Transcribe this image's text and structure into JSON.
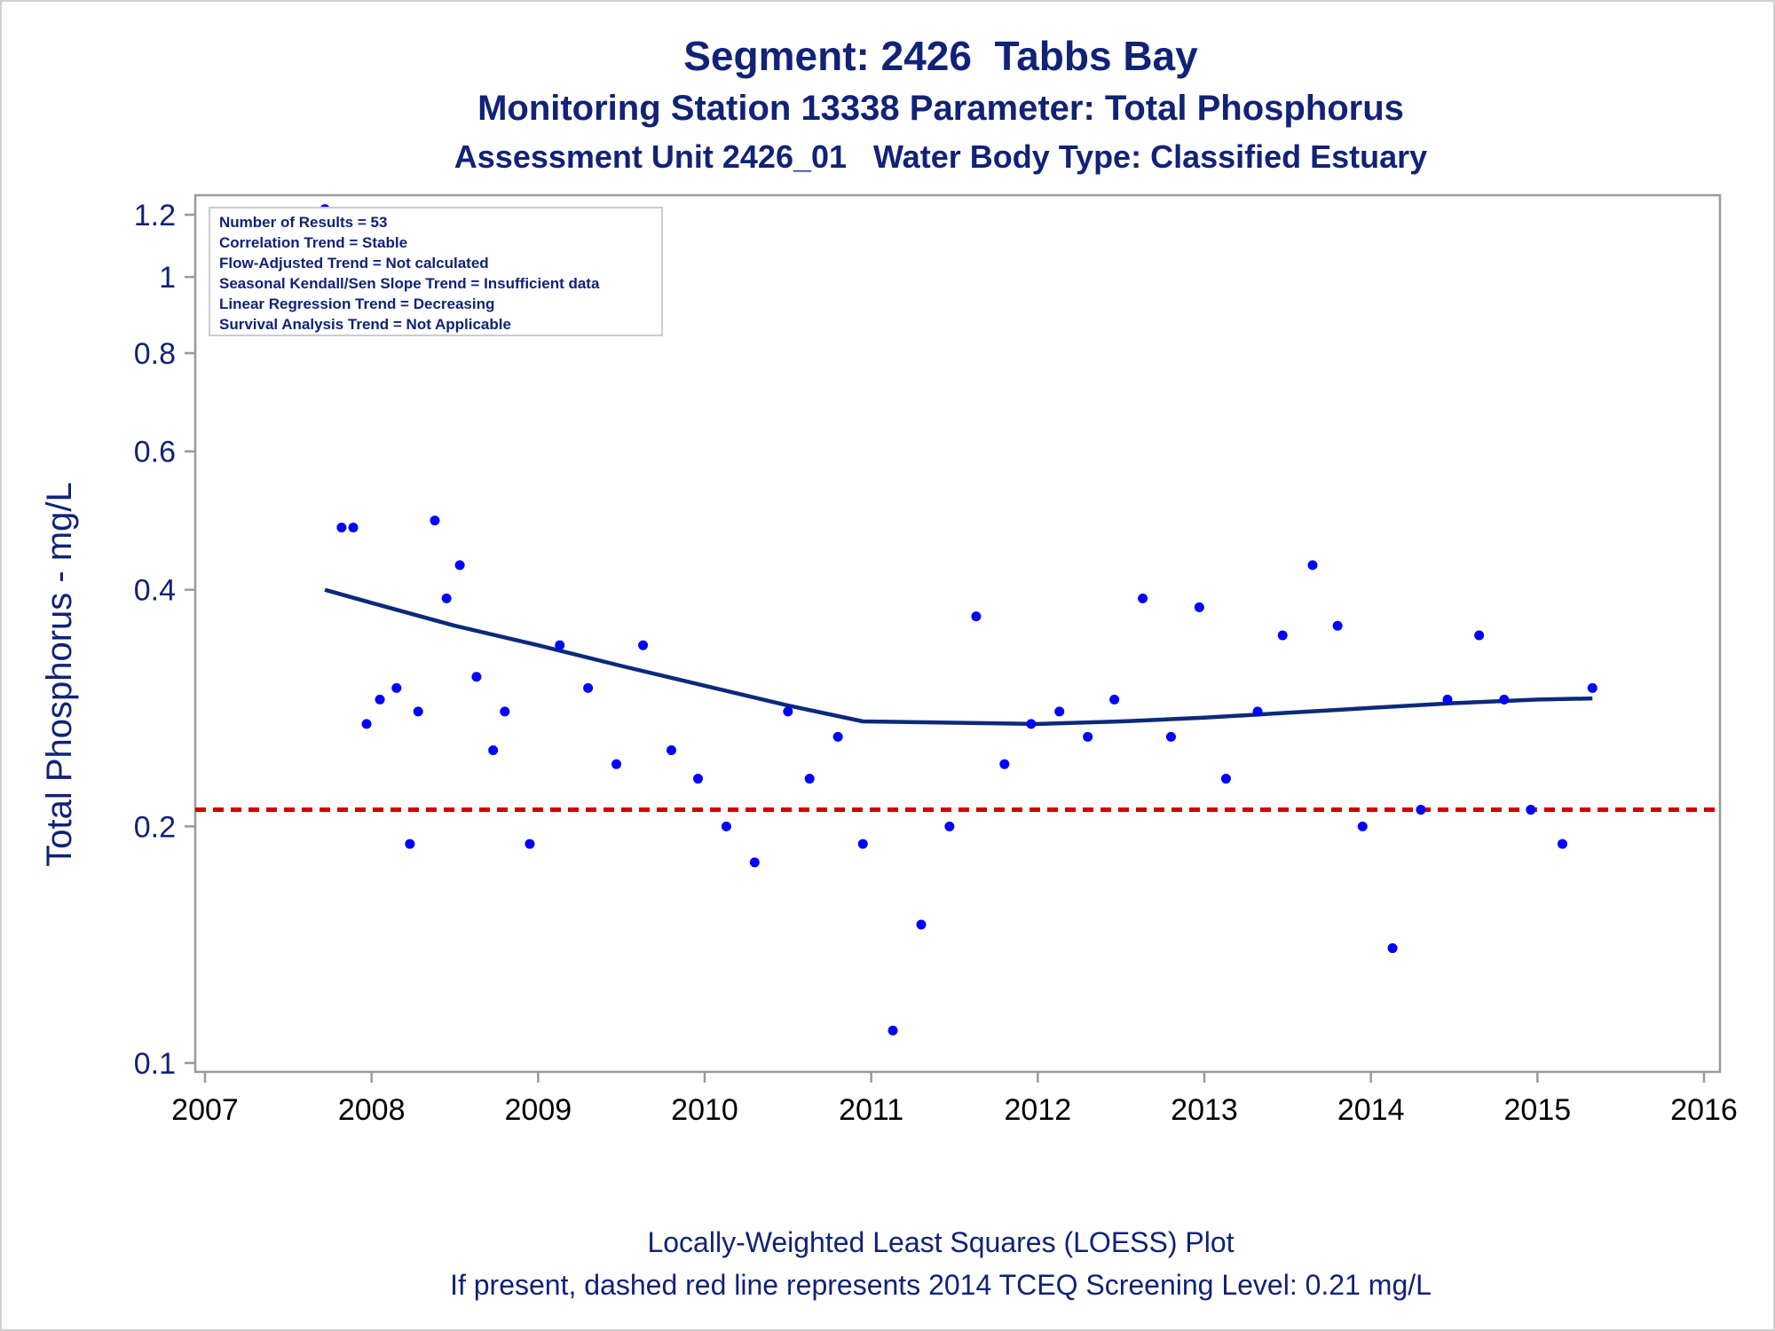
{
  "titles": {
    "line1": "Segment: 2426  Tabbs Bay",
    "line2": "Monitoring Station 13338 Parameter: Total Phosphorus",
    "line3": "Assessment Unit 2426_01   Water Body Type: Classified Estuary"
  },
  "footnotes": {
    "line1": "Locally-Weighted Least Squares (LOESS) Plot",
    "line2": "If present, dashed red line represents 2014 TCEQ Screening Level: 0.21 mg/L"
  },
  "stats": [
    "Number of Results = 53",
    "Correlation Trend = Stable",
    "Flow-Adjusted Trend = Not calculated",
    "Seasonal Kendall/Sen Slope Trend = Insufficient data",
    "Linear Regression Trend = Decreasing",
    "Survival Analysis Trend = Not Applicable"
  ],
  "colors": {
    "text": "#112277",
    "points": "#0000ff",
    "loess": "#0c2a7a",
    "screening": "#d00000",
    "axis": "#999999"
  },
  "chart_data": {
    "type": "scatter",
    "ylabel": "Total Phosphorus - mg/L",
    "xlabel": "",
    "y_scale": "log",
    "xlim": [
      2007,
      2016
    ],
    "ylim": [
      0.1,
      1.25
    ],
    "x_ticks": [
      2007,
      2008,
      2009,
      2010,
      2011,
      2012,
      2013,
      2014,
      2015,
      2016
    ],
    "y_ticks": [
      0.1,
      0.2,
      0.4,
      0.6,
      0.8,
      1,
      1.2
    ],
    "y_tick_labels": [
      "0.1",
      "0.2",
      "0.4",
      "0.6",
      "0.8",
      "1",
      "1.2"
    ],
    "screening_level": 0.21,
    "series": [
      {
        "kind": "points",
        "points": [
          [
            2007.72,
            1.22
          ],
          [
            2007.82,
            0.48
          ],
          [
            2007.89,
            0.48
          ],
          [
            2007.97,
            0.27
          ],
          [
            2008.05,
            0.29
          ],
          [
            2008.15,
            0.3
          ],
          [
            2008.23,
            0.19
          ],
          [
            2008.28,
            0.28
          ],
          [
            2008.38,
            0.49
          ],
          [
            2008.45,
            0.39
          ],
          [
            2008.53,
            0.43
          ],
          [
            2008.63,
            0.31
          ],
          [
            2008.73,
            0.25
          ],
          [
            2008.8,
            0.28
          ],
          [
            2008.95,
            0.19
          ],
          [
            2009.13,
            0.34
          ],
          [
            2009.3,
            0.3
          ],
          [
            2009.47,
            0.24
          ],
          [
            2009.63,
            0.34
          ],
          [
            2009.8,
            0.25
          ],
          [
            2009.96,
            0.23
          ],
          [
            2010.13,
            0.2
          ],
          [
            2010.3,
            0.18
          ],
          [
            2010.5,
            0.28
          ],
          [
            2010.63,
            0.23
          ],
          [
            2010.8,
            0.26
          ],
          [
            2010.95,
            0.19
          ],
          [
            2011.13,
            0.11
          ],
          [
            2011.3,
            0.15
          ],
          [
            2011.47,
            0.2
          ],
          [
            2011.63,
            0.37
          ],
          [
            2011.8,
            0.24
          ],
          [
            2011.96,
            0.27
          ],
          [
            2012.13,
            0.28
          ],
          [
            2012.3,
            0.26
          ],
          [
            2012.46,
            0.29
          ],
          [
            2012.63,
            0.39
          ],
          [
            2012.8,
            0.26
          ],
          [
            2012.97,
            0.38
          ],
          [
            2013.13,
            0.23
          ],
          [
            2013.32,
            0.28
          ],
          [
            2013.47,
            0.35
          ],
          [
            2013.65,
            0.43
          ],
          [
            2013.8,
            0.36
          ],
          [
            2013.95,
            0.2
          ],
          [
            2014.13,
            0.14
          ],
          [
            2014.3,
            0.21
          ],
          [
            2014.46,
            0.29
          ],
          [
            2014.65,
            0.35
          ],
          [
            2014.8,
            0.29
          ],
          [
            2014.96,
            0.21
          ],
          [
            2015.15,
            0.19
          ],
          [
            2015.33,
            0.3
          ]
        ]
      },
      {
        "kind": "loess",
        "points": [
          [
            2007.72,
            0.4
          ],
          [
            2008.0,
            0.385
          ],
          [
            2008.5,
            0.36
          ],
          [
            2009.0,
            0.34
          ],
          [
            2009.5,
            0.32
          ],
          [
            2010.0,
            0.302
          ],
          [
            2010.5,
            0.285
          ],
          [
            2010.95,
            0.272
          ],
          [
            2011.5,
            0.271
          ],
          [
            2012.0,
            0.27
          ],
          [
            2012.5,
            0.272
          ],
          [
            2013.0,
            0.275
          ],
          [
            2013.5,
            0.279
          ],
          [
            2014.0,
            0.283
          ],
          [
            2014.5,
            0.287
          ],
          [
            2015.0,
            0.29
          ],
          [
            2015.33,
            0.291
          ]
        ]
      }
    ]
  }
}
